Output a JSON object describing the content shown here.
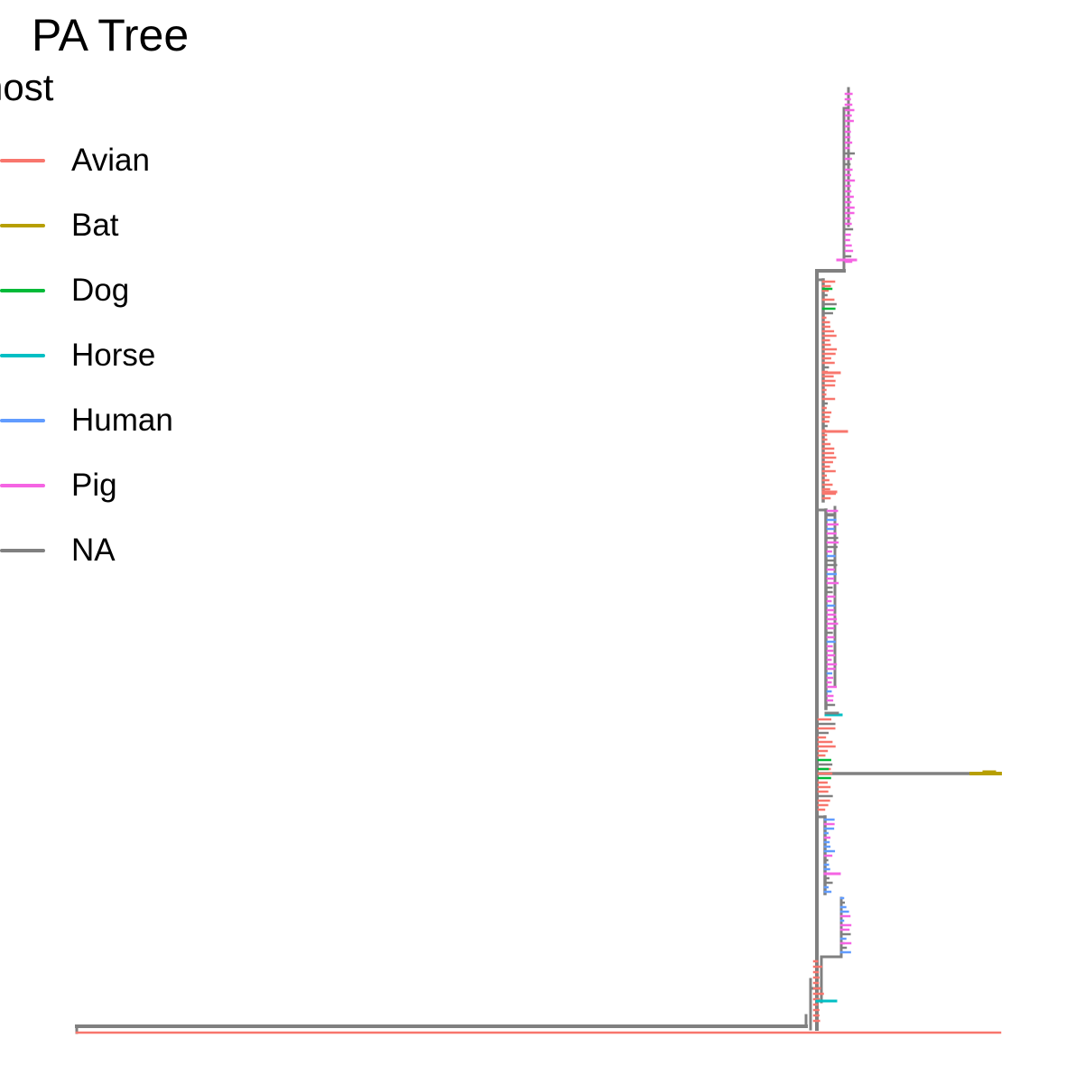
{
  "title": "PA Tree",
  "legend": {
    "title": "host",
    "items": [
      {
        "label": "Avian",
        "color": "#F8766D"
      },
      {
        "label": "Bat",
        "color": "#B79F00"
      },
      {
        "label": "Dog",
        "color": "#00BA38"
      },
      {
        "label": "Horse",
        "color": "#00BFC4"
      },
      {
        "label": "Human",
        "color": "#619CFF"
      },
      {
        "label": "Pig",
        "color": "#F564E3"
      },
      {
        "label": "NA",
        "color": "#808080"
      }
    ]
  },
  "tree": {
    "layout": "rectangular",
    "colors": {
      "Avian": "#F8766D",
      "Bat": "#B79F00",
      "Dog": "#00BA38",
      "Horse": "#00BFC4",
      "Human": "#619CFF",
      "Pig": "#F564E3",
      "NA": "#808080"
    }
  }
}
